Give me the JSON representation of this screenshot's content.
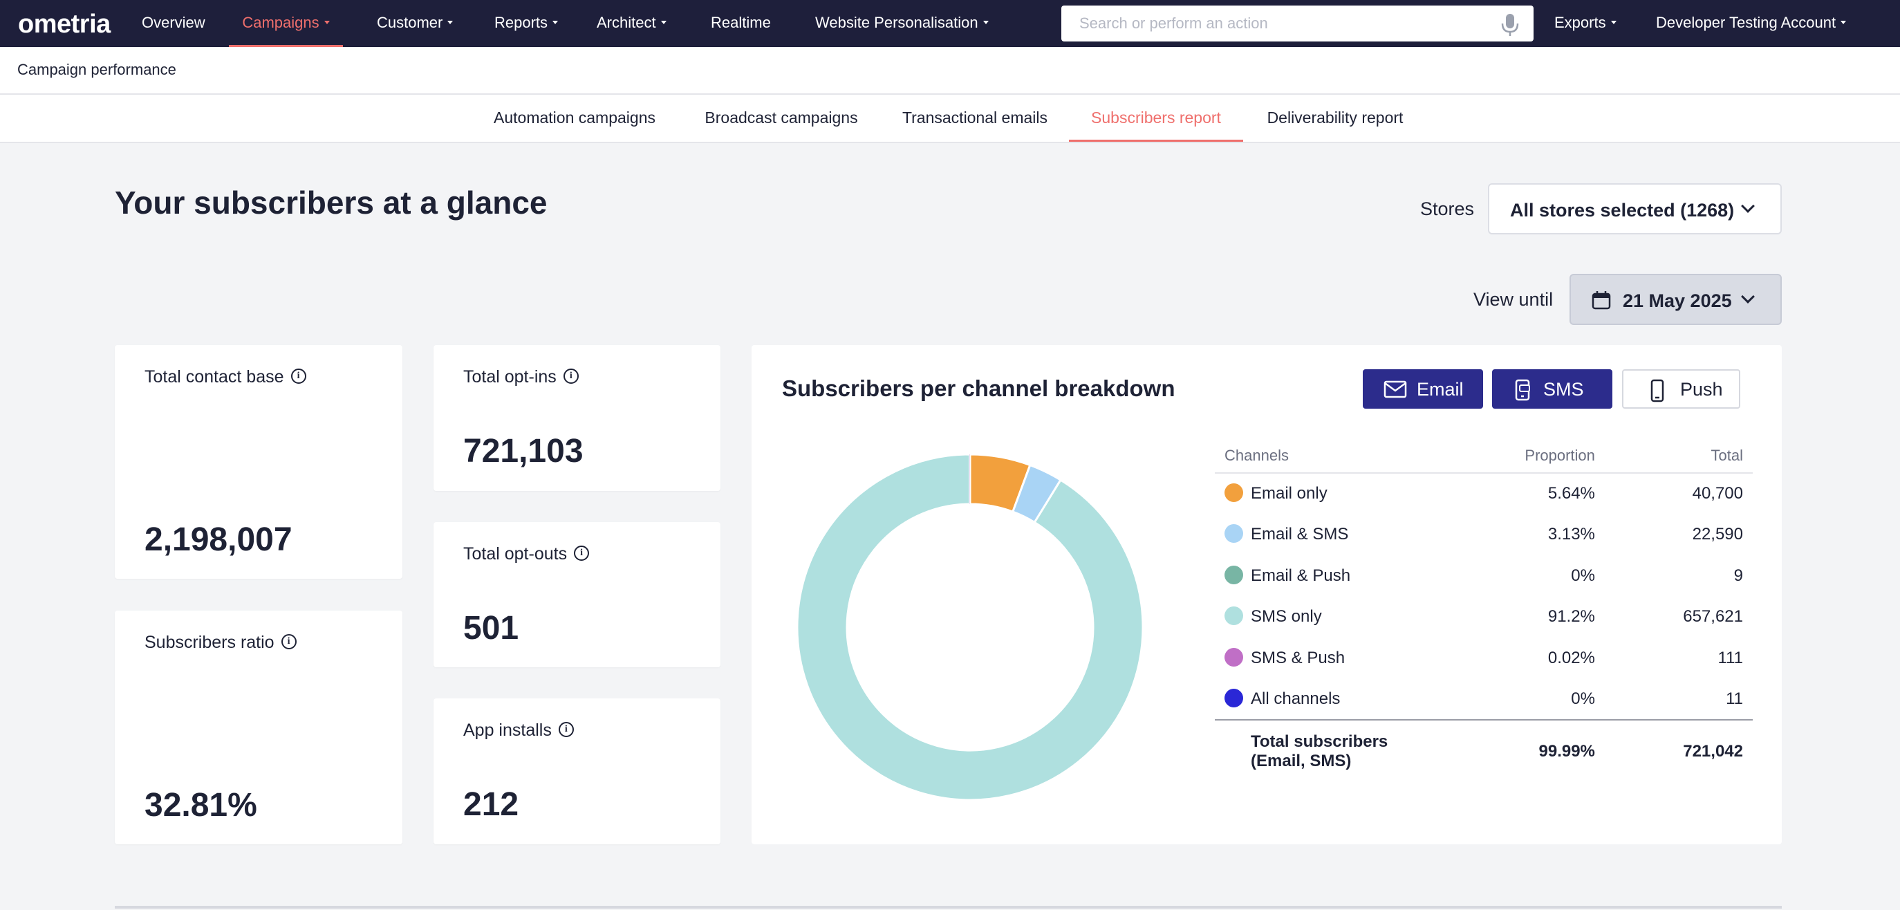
{
  "app": {
    "logo": "ometria"
  },
  "nav": {
    "items": [
      {
        "label": "Overview",
        "caret": false
      },
      {
        "label": "Campaigns",
        "caret": true
      },
      {
        "label": "Customer",
        "caret": true
      },
      {
        "label": "Reports",
        "caret": true
      },
      {
        "label": "Architect",
        "caret": true
      },
      {
        "label": "Realtime",
        "caret": false
      },
      {
        "label": "Website Personalisation",
        "caret": true
      }
    ],
    "active": "Campaigns",
    "search_placeholder": "Search or perform an action",
    "exports_label": "Exports",
    "account_label": "Developer Testing Account"
  },
  "breadcrumb": "Campaign performance",
  "tabs": [
    {
      "label": "Automation campaigns"
    },
    {
      "label": "Broadcast campaigns"
    },
    {
      "label": "Transactional emails"
    },
    {
      "label": "Subscribers report"
    },
    {
      "label": "Deliverability report"
    }
  ],
  "active_tab": "Subscribers report",
  "page": {
    "title": "Your subscribers at a glance",
    "stores_label": "Stores",
    "stores_value": "All stores selected (1268)",
    "view_until_label": "View until",
    "view_until_value": "21 May 2025"
  },
  "cards": {
    "total_contact_base": {
      "label": "Total contact base",
      "value": "2,198,007"
    },
    "subscribers_ratio": {
      "label": "Subscribers ratio",
      "value": "32.81%"
    },
    "total_opt_ins": {
      "label": "Total opt-ins",
      "value": "721,103"
    },
    "total_opt_outs": {
      "label": "Total opt-outs",
      "value": "501"
    },
    "app_installs": {
      "label": "App installs",
      "value": "212"
    }
  },
  "breakdown": {
    "title": "Subscribers per channel breakdown",
    "buttons": [
      {
        "label": "Email",
        "selected": true,
        "icon": "envelope-icon"
      },
      {
        "label": "SMS",
        "selected": true,
        "icon": "phone-sms-icon"
      },
      {
        "label": "Push",
        "selected": false,
        "icon": "mobile-icon"
      }
    ],
    "columns": [
      "Channels",
      "Proportion",
      "Total"
    ],
    "rows": [
      {
        "channel": "Email only",
        "proportion": "5.64%",
        "total": "40,700",
        "color": "#f2a03d"
      },
      {
        "channel": "Email & SMS",
        "proportion": "3.13%",
        "total": "22,590",
        "color": "#a9d4f5"
      },
      {
        "channel": "Email & Push",
        "proportion": "0%",
        "total": "9",
        "color": "#78b5a4"
      },
      {
        "channel": "SMS only",
        "proportion": "91.2%",
        "total": "657,621",
        "color": "#afe0df"
      },
      {
        "channel": "SMS & Push",
        "proportion": "0.02%",
        "total": "111",
        "color": "#c06fc6"
      },
      {
        "channel": "All channels",
        "proportion": "0%",
        "total": "11",
        "color": "#2a27d6"
      }
    ],
    "total_row": {
      "label": "Total subscribers (Email, SMS)",
      "proportion": "99.99%",
      "total": "721,042"
    }
  },
  "colors": {
    "nav_bg": "#1e1f3b",
    "accent": "#ef6f6c",
    "button_primary": "#2c2c8c",
    "page_bg": "#f3f4f6"
  },
  "chart_data": {
    "type": "pie",
    "categories": [
      "Email only",
      "Email & SMS",
      "Email & Push",
      "SMS only",
      "SMS & Push",
      "All channels"
    ],
    "values": [
      40700,
      22590,
      9,
      657621,
      111,
      11
    ],
    "colors": [
      "#f2a03d",
      "#a9d4f5",
      "#78b5a4",
      "#afe0df",
      "#c06fc6",
      "#2a27d6"
    ],
    "donut": true
  }
}
